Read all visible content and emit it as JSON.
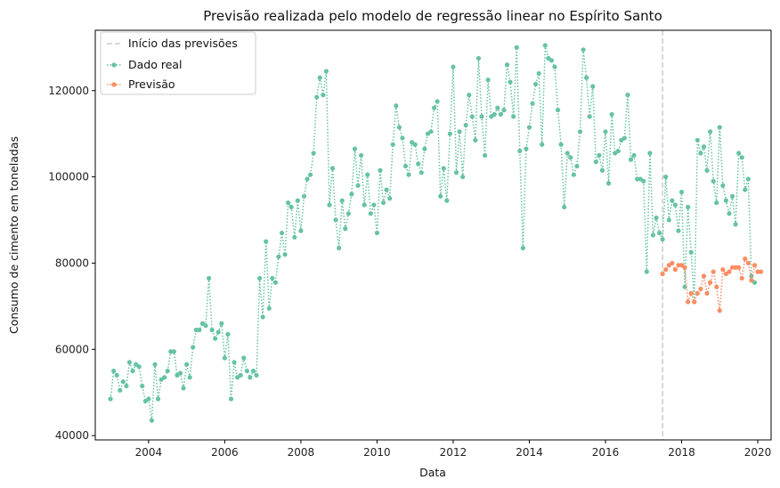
{
  "chart_data": {
    "type": "line",
    "title": "Previsão realizada pelo modelo de regressão linear no Espírito Santo",
    "xlabel": "Data",
    "ylabel": "Consumo de cimento em toneladas",
    "xlim": [
      2002.6,
      2020.35
    ],
    "ylim": [
      39000,
      134000
    ],
    "x_ticks": [
      2004,
      2006,
      2008,
      2010,
      2012,
      2014,
      2016,
      2018,
      2020
    ],
    "y_ticks": [
      40000,
      60000,
      80000,
      100000,
      120000
    ],
    "x_tick_labels": [
      "2004",
      "2006",
      "2008",
      "2010",
      "2012",
      "2014",
      "2016",
      "2018",
      "2020"
    ],
    "y_tick_labels": [
      "40000",
      "60000",
      "80000",
      "100000",
      "120000"
    ],
    "grid": false,
    "legend_position": "top-left",
    "legend": [
      "Início das previsões",
      "Dado real",
      "Previsão"
    ],
    "forecast_start": 2017.5,
    "colors": {
      "real": "#66c2a5",
      "forecast": "#fc8d62",
      "vline": "#cccccc"
    },
    "series": [
      {
        "name": "Dado real",
        "start": 2003.0,
        "step_months": 1,
        "values": [
          48500,
          55000,
          54000,
          50500,
          52500,
          51500,
          57000,
          55000,
          56500,
          56000,
          51500,
          48000,
          48500,
          43500,
          56500,
          48500,
          53000,
          53500,
          55000,
          59500,
          59500,
          54000,
          54500,
          51000,
          56500,
          53500,
          60500,
          64500,
          64500,
          66000,
          65500,
          76500,
          64500,
          62500,
          64000,
          66000,
          58000,
          63500,
          48500,
          57000,
          53500,
          54000,
          58000,
          55000,
          53500,
          55000,
          54000,
          76500,
          67500,
          85000,
          69500,
          76500,
          75500,
          81500,
          87000,
          82000,
          94000,
          93000,
          86000,
          94500,
          87500,
          95500,
          99500,
          100500,
          105500,
          118500,
          123000,
          119000,
          124500,
          93500,
          102000,
          90000,
          83500,
          94500,
          88000,
          91500,
          96000,
          106500,
          98000,
          105000,
          93500,
          100500,
          91500,
          93500,
          87000,
          101500,
          94000,
          97000,
          95000,
          107500,
          116500,
          111500,
          109000,
          102500,
          100500,
          108000,
          107500,
          103000,
          101000,
          106500,
          110000,
          110500,
          116000,
          117500,
          95500,
          102000,
          94500,
          110000,
          125500,
          101000,
          110500,
          100000,
          112000,
          119000,
          114000,
          108500,
          127500,
          114000,
          105000,
          122500,
          114000,
          114500,
          116000,
          114500,
          115500,
          126000,
          122000,
          114000,
          130000,
          106000,
          83500,
          106500,
          111500,
          117000,
          121500,
          124000,
          107500,
          130500,
          127500,
          127000,
          125500,
          115500,
          107500,
          93000,
          105500,
          104500,
          100500,
          102500,
          110500,
          129500,
          123000,
          114000,
          121000,
          103500,
          105000,
          101500,
          110500,
          98500,
          114500,
          105500,
          106000,
          108500,
          109000,
          119000,
          104000,
          105000,
          99500,
          99500,
          99000,
          78000,
          105500,
          86500,
          90500,
          87000,
          85500,
          100000,
          90000,
          94500,
          93500,
          87500,
          96500,
          74500,
          93000,
          82500,
          71000,
          108500,
          105500,
          107000,
          101500,
          110500,
          99000,
          94000,
          111500,
          98000,
          94500,
          91500,
          95500,
          89000,
          105500,
          104500,
          97000,
          99500,
          77000,
          75500
        ]
      },
      {
        "name": "Previsão",
        "start": 2017.5,
        "step_months": 1,
        "values": [
          77500,
          78500,
          79500,
          80000,
          78500,
          79500,
          79500,
          79000,
          71000,
          73000,
          71000,
          73000,
          74000,
          77000,
          73000,
          75500,
          78000,
          74500,
          69000,
          78500,
          77500,
          78000,
          79000,
          79000,
          79000,
          76500,
          81000,
          80000,
          76000,
          79500,
          78000,
          78000
        ]
      }
    ]
  }
}
